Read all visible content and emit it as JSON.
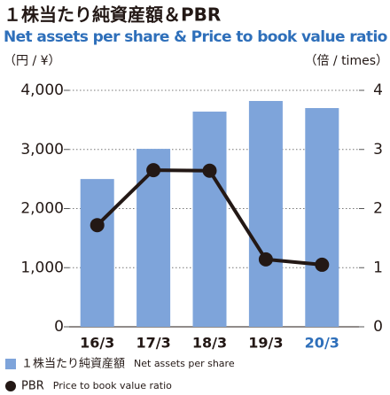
{
  "chart_data": {
    "type": "bar_line",
    "title": "１株当たり純資産額＆PBR",
    "subtitle": "Net assets per share & Price to book value ratio",
    "y_label": "（円 / ¥）",
    "y2_label": "（倍 / times）",
    "categories": [
      "16/3",
      "17/3",
      "18/3",
      "19/3",
      "20/3"
    ],
    "series": [
      {
        "name": "１株当たり純資産額",
        "name_en": "Net assets per share",
        "color": "#7ea4da",
        "type": "bar",
        "values": [
          2500,
          3010,
          3640,
          3820,
          3700
        ]
      },
      {
        "name": "PBR",
        "name_en": "Price to book value ratio",
        "color": "#231815",
        "type": "line",
        "axis": "y2",
        "values": [
          1.72,
          2.65,
          2.64,
          1.14,
          1.05
        ]
      }
    ],
    "ylim": [
      0,
      4000
    ],
    "yticks": [
      0,
      {
        "value": 1000,
        "label": "1,000"
      },
      {
        "value": 2000,
        "label": "2,000"
      },
      {
        "value": 3000,
        "label": "3,000"
      },
      {
        "value": 4000,
        "label": "4,000"
      }
    ],
    "y2lim": [
      0,
      4
    ],
    "y2ticks": [
      0,
      1,
      2,
      3,
      4
    ],
    "grid": true,
    "highlight_color": "#2e6fba",
    "subtitle_color": "#2e6fba"
  }
}
